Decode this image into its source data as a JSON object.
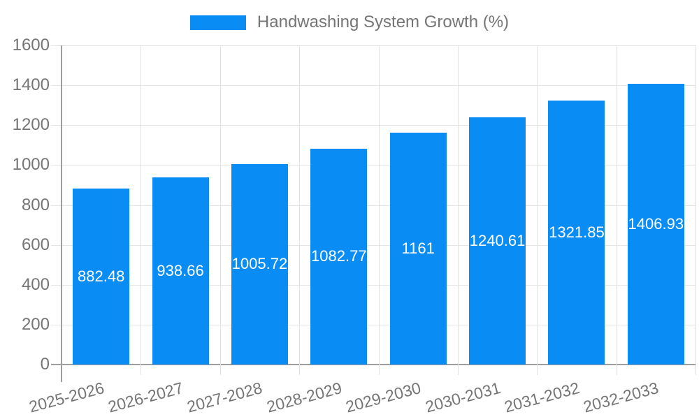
{
  "legend": {
    "label": "Handwashing System Growth (%)"
  },
  "chart_data": {
    "type": "bar",
    "title": "",
    "xlabel": "",
    "ylabel": "",
    "categories": [
      "2025-2026",
      "2026-2027",
      "2027-2028",
      "2028-2029",
      "2029-2030",
      "2030-2031",
      "2031-2032",
      "2032-2033"
    ],
    "series": [
      {
        "name": "Handwashing System Growth (%)",
        "values": [
          882.48,
          938.66,
          1005.72,
          1082.77,
          1161,
          1240.61,
          1321.85,
          1406.93
        ]
      }
    ],
    "data_labels": [
      "882.48",
      "938.66",
      "1005.72",
      "1082.77",
      "1161",
      "1240.61",
      "1321.85",
      "1406.93"
    ],
    "ylim": [
      0,
      1600
    ],
    "yticks": [
      0,
      200,
      400,
      600,
      800,
      1000,
      1200,
      1400,
      1600
    ],
    "grid": true,
    "legend_position": "top-center",
    "x_tick_rotation_deg": -15,
    "colors": {
      "bar": "#0a8cf5",
      "axis_line": "#9e9e9e",
      "gridline": "#e5e5e5",
      "tick_label": "#757575",
      "legend_text": "#757575",
      "data_label": "#ffffff",
      "background": "#ffffff"
    }
  }
}
